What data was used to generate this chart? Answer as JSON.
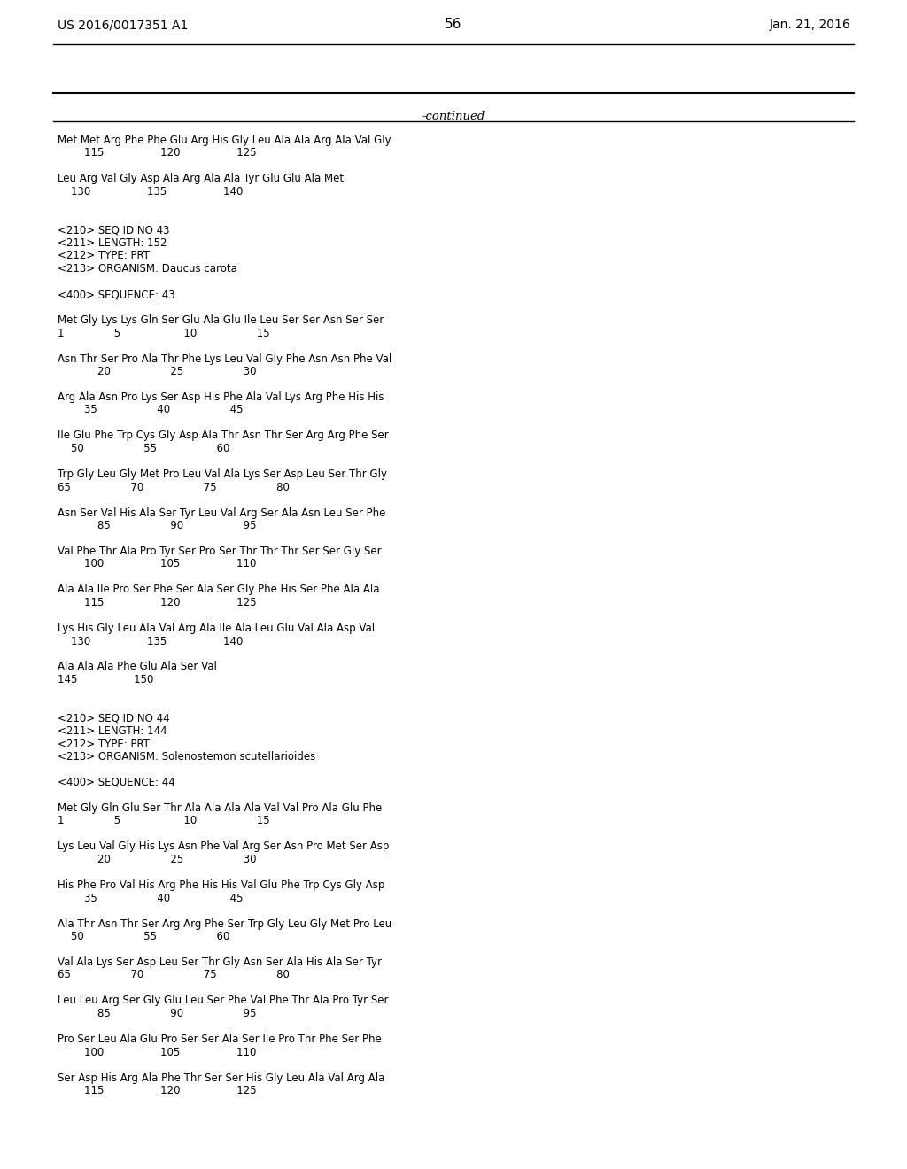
{
  "header_left": "US 2016/0017351 A1",
  "header_right": "Jan. 21, 2016",
  "page_number": "56",
  "continued_text": "-continued",
  "background_color": "#ffffff",
  "text_color": "#000000",
  "font_size": 9.5,
  "header_font_size": 10,
  "lines": [
    "Met Met Arg Phe Phe Glu Arg His Gly Leu Ala Ala Arg Ala Val Gly",
    "        115                 120                 125",
    "",
    "Leu Arg Val Gly Asp Ala Arg Ala Ala Tyr Glu Glu Ala Met",
    "    130                 135                 140",
    "",
    "",
    "<210> SEQ ID NO 43",
    "<211> LENGTH: 152",
    "<212> TYPE: PRT",
    "<213> ORGANISM: Daucus carota",
    "",
    "<400> SEQUENCE: 43",
    "",
    "Met Gly Lys Lys Gln Ser Glu Ala Glu Ile Leu Ser Ser Asn Ser Ser",
    "1               5                   10                  15",
    "",
    "Asn Thr Ser Pro Ala Thr Phe Lys Leu Val Gly Phe Asn Asn Phe Val",
    "            20                  25                  30",
    "",
    "Arg Ala Asn Pro Lys Ser Asp His Phe Ala Val Lys Arg Phe His His",
    "        35                  40                  45",
    "",
    "Ile Glu Phe Trp Cys Gly Asp Ala Thr Asn Thr Ser Arg Arg Phe Ser",
    "    50                  55                  60",
    "",
    "Trp Gly Leu Gly Met Pro Leu Val Ala Lys Ser Asp Leu Ser Thr Gly",
    "65                  70                  75                  80",
    "",
    "Asn Ser Val His Ala Ser Tyr Leu Val Arg Ser Ala Asn Leu Ser Phe",
    "            85                  90                  95",
    "",
    "Val Phe Thr Ala Pro Tyr Ser Pro Ser Thr Thr Thr Ser Ser Gly Ser",
    "        100                 105                 110",
    "",
    "Ala Ala Ile Pro Ser Phe Ser Ala Ser Gly Phe His Ser Phe Ala Ala",
    "        115                 120                 125",
    "",
    "Lys His Gly Leu Ala Val Arg Ala Ile Ala Leu Glu Val Ala Asp Val",
    "    130                 135                 140",
    "",
    "Ala Ala Ala Phe Glu Ala Ser Val",
    "145                 150",
    "",
    "",
    "<210> SEQ ID NO 44",
    "<211> LENGTH: 144",
    "<212> TYPE: PRT",
    "<213> ORGANISM: Solenostemon scutellarioides",
    "",
    "<400> SEQUENCE: 44",
    "",
    "Met Gly Gln Glu Ser Thr Ala Ala Ala Ala Val Val Pro Ala Glu Phe",
    "1               5                   10                  15",
    "",
    "Lys Leu Val Gly His Lys Asn Phe Val Arg Ser Asn Pro Met Ser Asp",
    "            20                  25                  30",
    "",
    "His Phe Pro Val His Arg Phe His His Val Glu Phe Trp Cys Gly Asp",
    "        35                  40                  45",
    "",
    "Ala Thr Asn Thr Ser Arg Arg Phe Ser Trp Gly Leu Gly Met Pro Leu",
    "    50                  55                  60",
    "",
    "Val Ala Lys Ser Asp Leu Ser Thr Gly Asn Ser Ala His Ala Ser Tyr",
    "65                  70                  75                  80",
    "",
    "Leu Leu Arg Ser Gly Glu Leu Ser Phe Val Phe Thr Ala Pro Tyr Ser",
    "            85                  90                  95",
    "",
    "Pro Ser Leu Ala Glu Pro Ser Ser Ala Ser Ile Pro Thr Phe Ser Phe",
    "        100                 105                 110",
    "",
    "Ser Asp His Arg Ala Phe Thr Ser Ser His Gly Leu Ala Val Arg Ala",
    "        115                 120                 125"
  ]
}
